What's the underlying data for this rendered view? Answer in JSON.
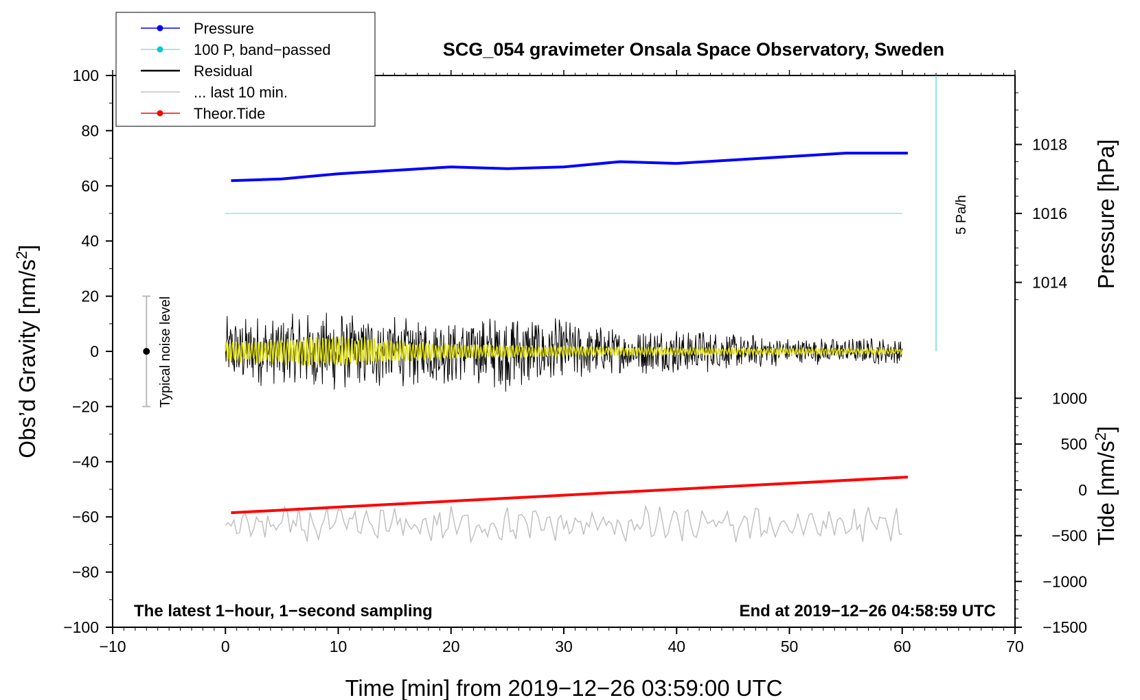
{
  "chart_data": {
    "type": "line",
    "title": "SCG_054 gravimeter Onsala Space Observatory, Sweden",
    "xlabel": "Time [min] from 2019−12−26 03:59:00 UTC",
    "ylabel_left": "Obs’d Gravity [nm/s",
    "ylabel_left_sup": "2",
    "ylabel_left_close": "]",
    "ylabel_pressure": "Pressure [hPa]",
    "ylabel_tide": "Tide [nm/s",
    "ylabel_tide_sup": "2",
    "ylabel_tide_close": "]",
    "xlim": [
      -10,
      70
    ],
    "ylim": [
      -100,
      100
    ],
    "x_ticks": [
      -10,
      0,
      10,
      20,
      30,
      40,
      50,
      60,
      70
    ],
    "x_tick_labels": [
      "−10",
      "0",
      "10",
      "20",
      "30",
      "40",
      "50",
      "60",
      "70"
    ],
    "y_ticks": [
      100,
      80,
      60,
      40,
      20,
      0,
      -20,
      -40,
      -60,
      -80,
      -100
    ],
    "y_tick_labels": [
      "100",
      "80",
      "60",
      "40",
      "20",
      "0",
      "−20",
      "−40",
      "−60",
      "−80",
      "−100"
    ],
    "pressure_axis": {
      "ticks": [
        1018,
        1016,
        1014
      ],
      "tick_labels": [
        "1018",
        "1016",
        "1014"
      ],
      "map": {
        "value_a": 1018,
        "gravity_a": 75,
        "value_b": 1014,
        "gravity_b": 25
      }
    },
    "tide_axis": {
      "ticks": [
        1000,
        500,
        0,
        -500,
        -1000,
        -1500
      ],
      "tick_labels": [
        "1000",
        "500",
        "0",
        "−500",
        "−1000",
        "−1500"
      ],
      "map": {
        "value_a": 1000,
        "gravity_a": -17,
        "value_b": -1500,
        "gravity_b": -100
      }
    },
    "legend": [
      {
        "label": "Pressure",
        "color": "#0000ff",
        "marker": true
      },
      {
        "label": "100 P, band−passed",
        "color": "#00cccc",
        "marker": true
      },
      {
        "label": "Residual",
        "color": "#000000",
        "marker": false
      },
      {
        "label": "... last 10 min.",
        "color": "#c0c0c0",
        "marker": false
      },
      {
        "label": "Theor.Tide",
        "color": "#ff0000",
        "marker": true
      }
    ],
    "series": [
      {
        "name": "Pressure",
        "color": "#0000ff",
        "unit": "hPa",
        "x": [
          0.5,
          5,
          10,
          15,
          20,
          25,
          30,
          35,
          40,
          45,
          50,
          55,
          60.5
        ],
        "y": [
          1016.95,
          1017.0,
          1017.15,
          1017.25,
          1017.35,
          1017.3,
          1017.35,
          1017.5,
          1017.45,
          1017.55,
          1017.65,
          1017.75,
          1017.75
        ]
      },
      {
        "name": "100 P, band−passed",
        "color": "#00cccc",
        "unit": "nm/s2",
        "x": [
          0,
          60
        ],
        "y": [
          50,
          50
        ]
      },
      {
        "name": "Residual",
        "color": "#000000",
        "unit": "nm/s2",
        "x_range": [
          0,
          60
        ],
        "envelope": [
          {
            "x": 0,
            "amp": 13
          },
          {
            "x": 10,
            "amp": 15
          },
          {
            "x": 20,
            "amp": 12
          },
          {
            "x": 25,
            "amp": 15
          },
          {
            "x": 30,
            "amp": 12
          },
          {
            "x": 35,
            "amp": 8
          },
          {
            "x": 40,
            "amp": 9
          },
          {
            "x": 45,
            "amp": 7
          },
          {
            "x": 50,
            "amp": 5
          },
          {
            "x": 60,
            "amp": 5
          }
        ]
      },
      {
        "name": "Residual (smoothed)",
        "color": "#dddd00",
        "unit": "nm/s2",
        "x_range": [
          0,
          60
        ],
        "envelope": [
          {
            "x": 0,
            "amp": 4
          },
          {
            "x": 10,
            "amp": 6
          },
          {
            "x": 20,
            "amp": 3
          },
          {
            "x": 30,
            "amp": 2
          },
          {
            "x": 40,
            "amp": 1.5
          },
          {
            "x": 60,
            "amp": 1
          }
        ]
      },
      {
        "name": "... last 10 min.",
        "color": "#c0c0c0",
        "unit": "nm/s2",
        "x_range": [
          0,
          60
        ],
        "center": -63,
        "amplitude": 5
      },
      {
        "name": "Theor.Tide",
        "color": "#ff0000",
        "unit": "nm/s2",
        "x": [
          0.5,
          60.5
        ],
        "y": [
          -250,
          140
        ]
      }
    ],
    "rate_bar": {
      "label": "5 Pa/h",
      "x": 63,
      "y_from": 0,
      "y_to": 100,
      "color": "#66dddd"
    },
    "noise_level": {
      "label": "Typical noise level",
      "x": -7,
      "center": 0,
      "half_range": 20
    },
    "annotations": {
      "bottom_left": "The latest 1−hour, 1−second sampling",
      "bottom_right": "End at 2019−12−26 04:58:59 UTC"
    }
  }
}
